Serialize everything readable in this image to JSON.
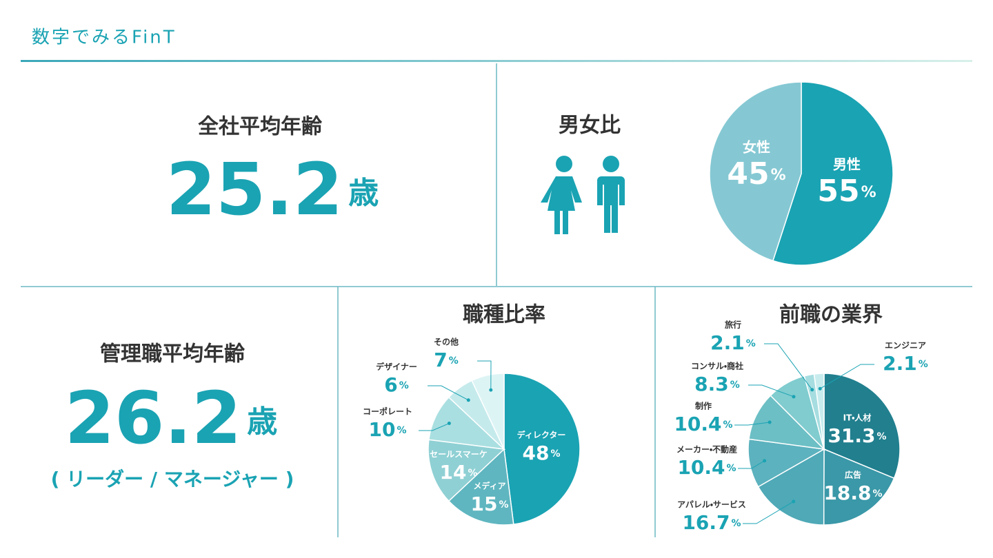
{
  "header": {
    "title": "数字でみるFinT"
  },
  "stats": {
    "avg_age": {
      "label": "全社平均年齢",
      "value": 25.2,
      "unit": "歳"
    },
    "manager_age": {
      "label": "管理職平均年齢",
      "value": 26.2,
      "unit": "歳",
      "note": "( リーダー / マネージャー )"
    }
  },
  "chart_data": [
    {
      "type": "pie",
      "title": "男女比",
      "categories": [
        "男性",
        "女性"
      ],
      "values": [
        55,
        45
      ],
      "unit": "%",
      "colors": [
        "#1aa3b3",
        "#85c8d3"
      ]
    },
    {
      "type": "pie",
      "title": "職種比率",
      "categories": [
        "ディレクター",
        "メディア",
        "セールスマーケ",
        "コーポレート",
        "デザイナー",
        "その他"
      ],
      "values": [
        48,
        15,
        14,
        10,
        6,
        7
      ],
      "unit": "%",
      "colors": [
        "#1aa3b3",
        "#5fb6c0",
        "#8fd0d4",
        "#aadfe1",
        "#c5eaec",
        "#ddf4f5"
      ]
    },
    {
      "type": "pie",
      "title": "前職の業界",
      "categories": [
        "IT・人材",
        "広告",
        "アパレル・サービス",
        "メーカー・不動産",
        "制作",
        "コンサル・商社",
        "旅行",
        "エンジニア"
      ],
      "values": [
        31.3,
        18.8,
        16.7,
        10.4,
        10.4,
        8.3,
        2.1,
        2.1
      ],
      "unit": "%",
      "colors": [
        "#217f8e",
        "#3a98a8",
        "#4fa9b7",
        "#5cb2be",
        "#6cbfc5",
        "#80cccf",
        "#a6dde0",
        "#c8ecee"
      ]
    }
  ]
}
